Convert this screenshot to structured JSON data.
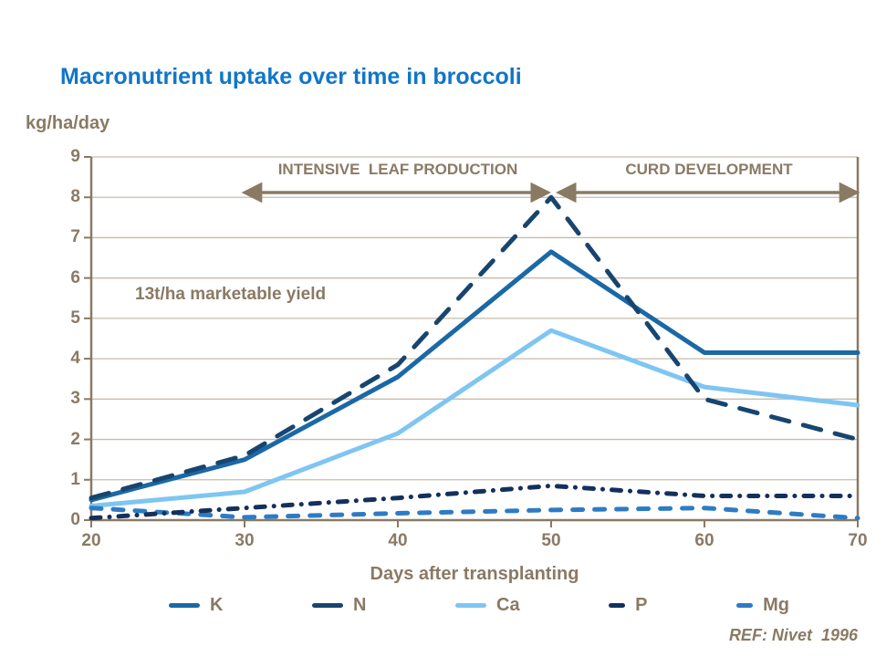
{
  "title": "Macronutrient uptake over time in broccoli",
  "title_color": "#1176c8",
  "y_axis_unit": "kg/ha/day",
  "annotations": {
    "yield_note": "13t/ha marketable yield",
    "reference": "REF: Nivet  1996"
  },
  "phases": [
    {
      "label": "INTENSIVE  LEAF PRODUCTION",
      "from_day": 30,
      "to_day": 49.8
    },
    {
      "label": "CURD DEVELOPMENT",
      "from_day": 50.5,
      "to_day": 70
    }
  ],
  "colors": {
    "text_brown": "#8a7a64",
    "axis": "#8a7a64",
    "gridline": "#c8bcab",
    "arrow": "#8a7a64"
  },
  "chart_data": {
    "type": "line",
    "title": "Macronutrient uptake over time in broccoli",
    "xlabel": "Days after transplanting",
    "ylabel": "kg/ha/day",
    "x": [
      20,
      30,
      40,
      50,
      60,
      70
    ],
    "xlim": [
      20,
      70
    ],
    "ylim": [
      0,
      9
    ],
    "yticks": [
      0,
      1,
      2,
      3,
      4,
      5,
      6,
      7,
      8,
      9
    ],
    "xticks": [
      20,
      30,
      40,
      50,
      60,
      70
    ],
    "grid": true,
    "legend_position": "bottom",
    "series": [
      {
        "name": "K",
        "color": "#1b68a6",
        "style": "solid",
        "values": [
          0.5,
          1.5,
          3.55,
          6.65,
          4.15,
          4.15
        ]
      },
      {
        "name": "N",
        "color": "#17456f",
        "style": "long-dash",
        "values": [
          0.55,
          1.6,
          3.85,
          8.0,
          3.0,
          2.0
        ]
      },
      {
        "name": "Ca",
        "color": "#7fc5f2",
        "style": "solid",
        "values": [
          0.35,
          0.7,
          2.15,
          4.7,
          3.3,
          2.85
        ]
      },
      {
        "name": "P",
        "color": "#14305c",
        "style": "dash-dot",
        "values": [
          0.05,
          0.3,
          0.55,
          0.85,
          0.6,
          0.6
        ]
      },
      {
        "name": "Mg",
        "color": "#2e7bc4",
        "style": "dash",
        "values": [
          0.3,
          0.07,
          0.17,
          0.25,
          0.3,
          0.05
        ]
      }
    ]
  }
}
